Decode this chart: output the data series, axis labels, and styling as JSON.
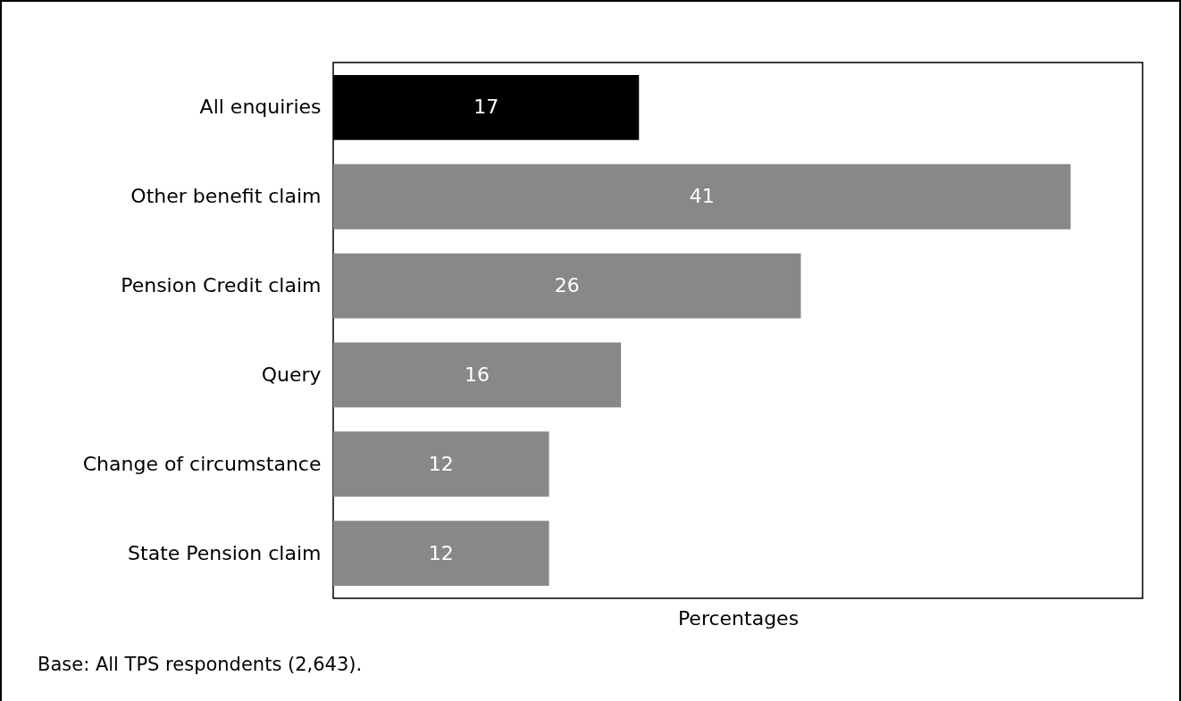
{
  "chart_data": {
    "type": "bar",
    "orientation": "horizontal",
    "xlabel": "Percentages",
    "categories": [
      "All enquiries",
      "Other benefit claim",
      "Pension Credit claim",
      "Query",
      "Change of circumstance",
      "State Pension claim"
    ],
    "values": [
      17,
      41,
      26,
      16,
      12,
      12
    ],
    "colors": [
      "#000000",
      "#878889",
      "#878889",
      "#878889",
      "#878889",
      "#878889"
    ],
    "xlim": [
      0,
      45
    ],
    "tick_labels": "y",
    "data_labels": true,
    "annotations": [
      "Base: All TPS respondents (2,643)."
    ]
  }
}
